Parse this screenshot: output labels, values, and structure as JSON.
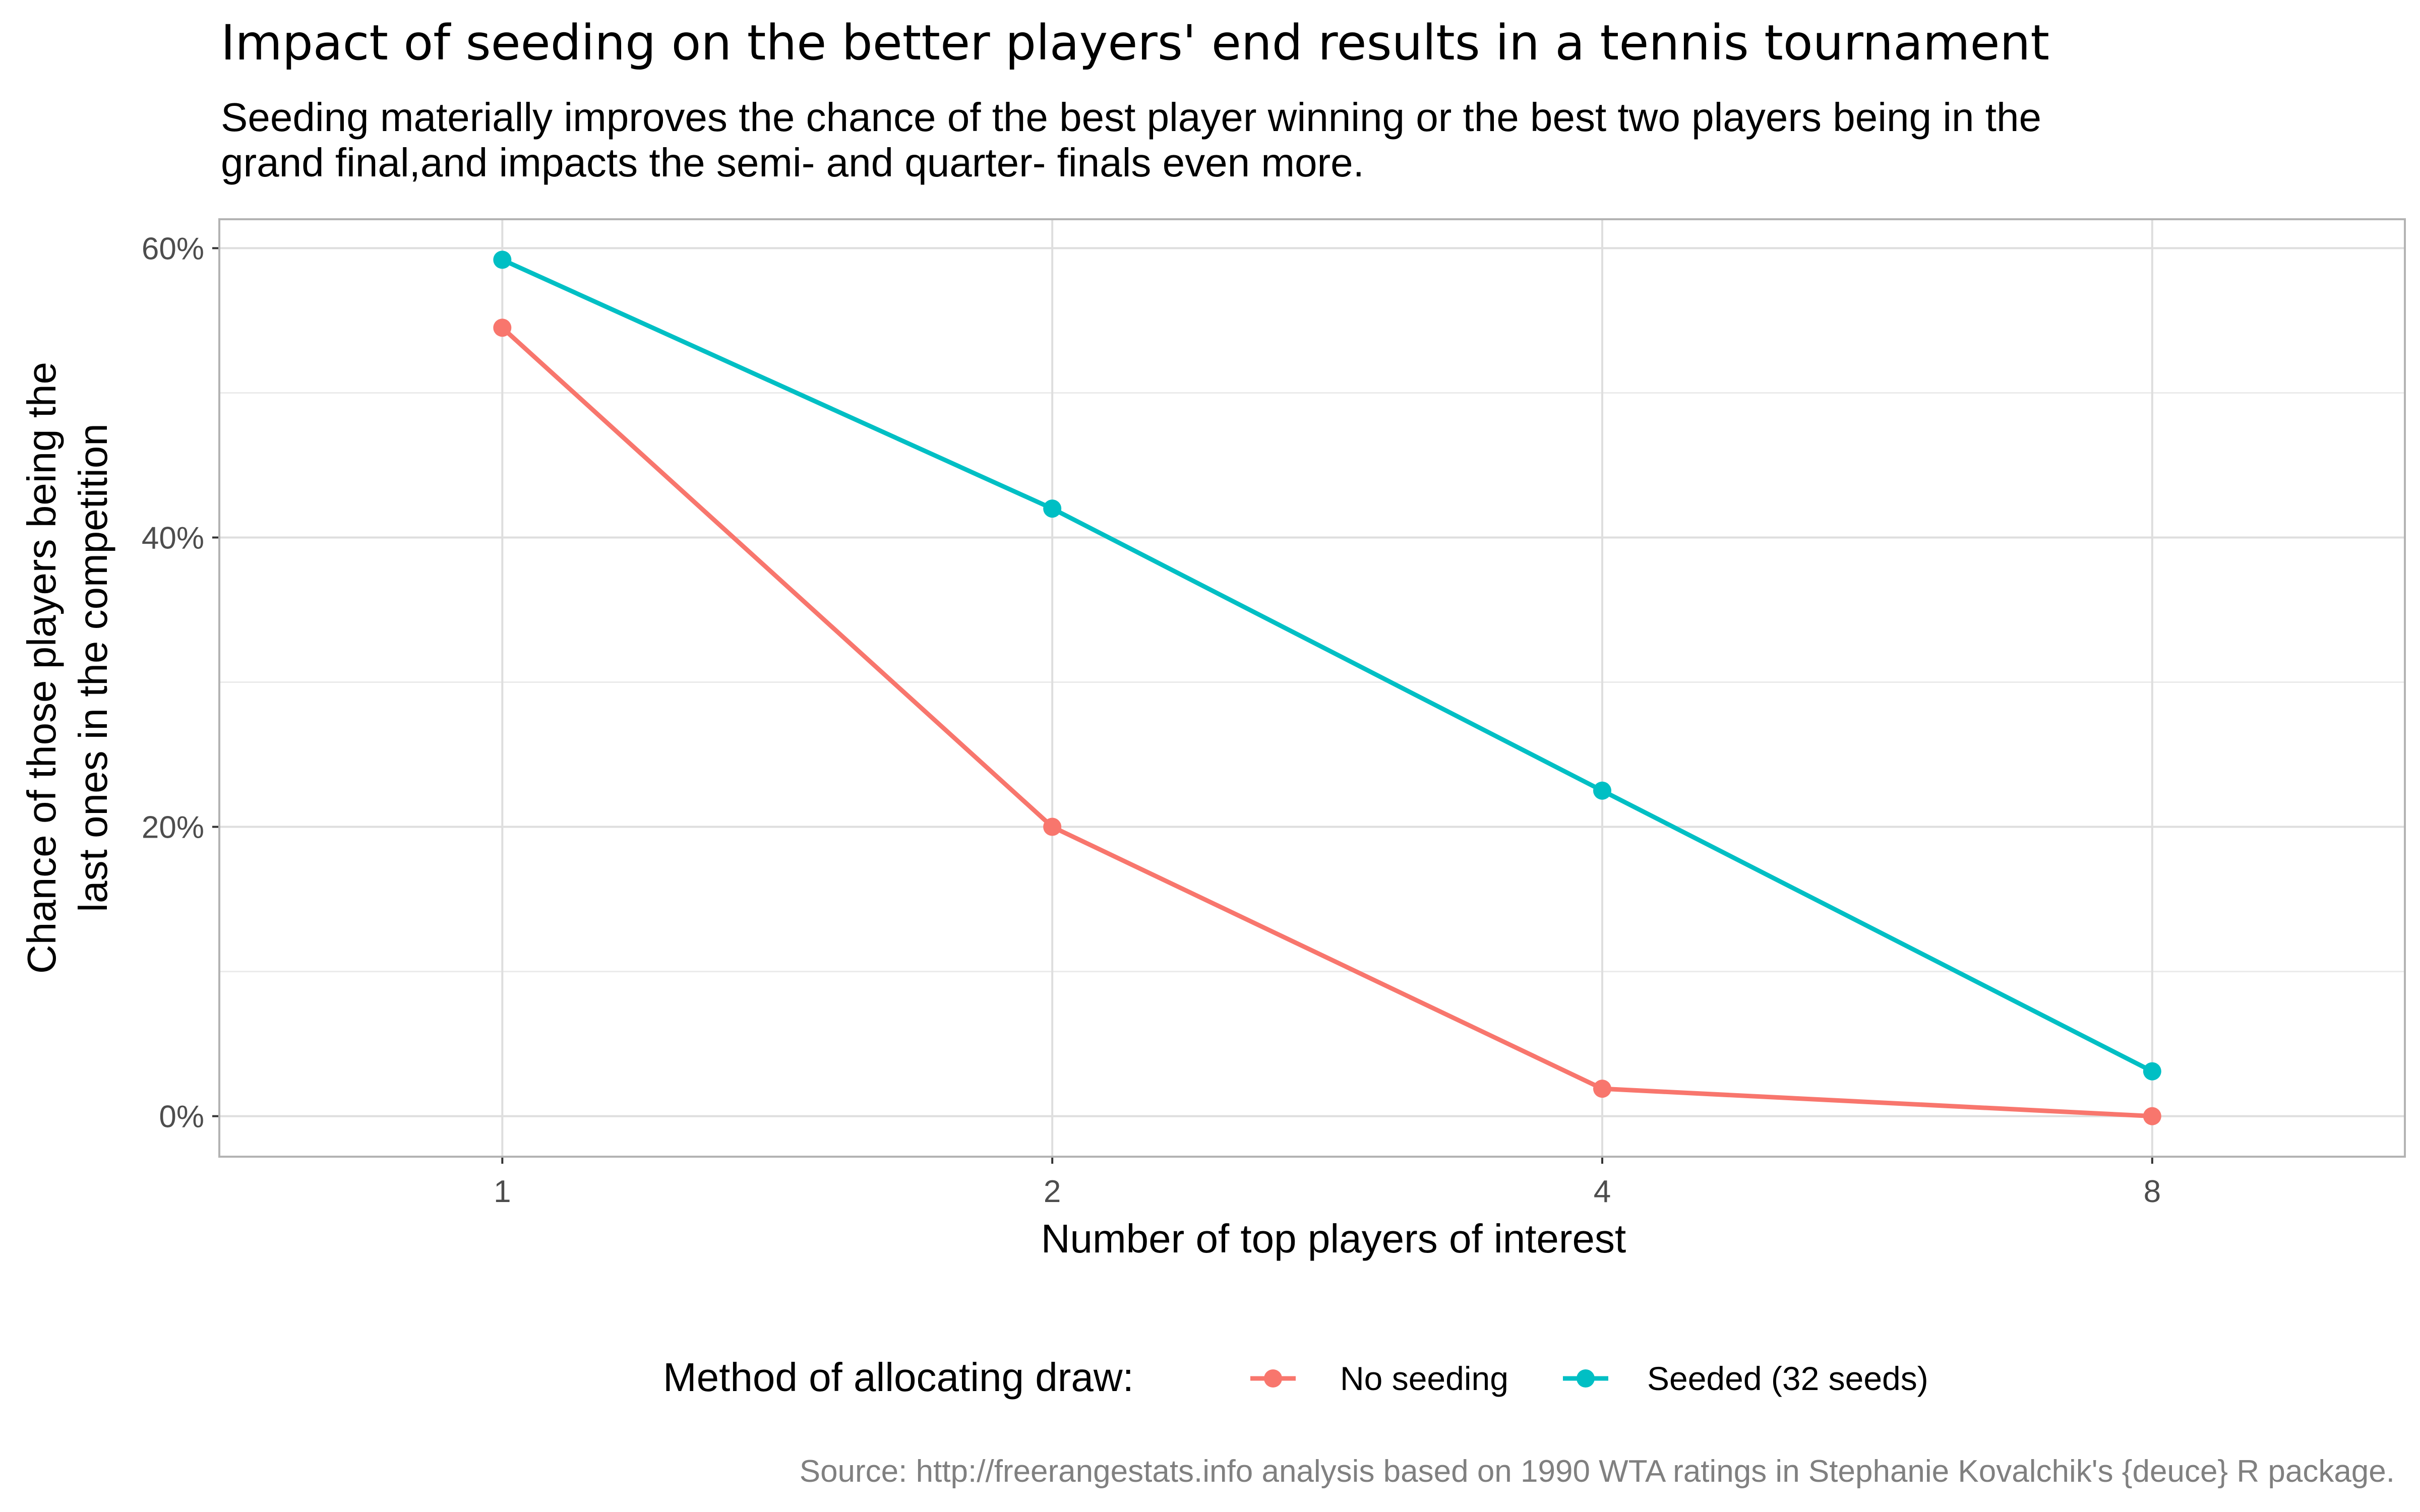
{
  "chart_data": {
    "type": "line",
    "title": "Impact of seeding on the better players' end results in a tennis tournament",
    "subtitle": [
      "Seeding materially improves the chance of the best player winning or the best two players being in the",
      "grand final,and impacts the semi- and quarter- finals even more."
    ],
    "xlabel": "Number of top players of interest",
    "ylabel": [
      "Chance of those players being the",
      "last ones in the competition"
    ],
    "x": [
      1,
      2,
      4,
      8
    ],
    "x_tick_labels": [
      "1",
      "2",
      "4",
      "8"
    ],
    "x_scale": "log2",
    "xlim": [
      0.7,
      11
    ],
    "ylim": [
      -0.028,
      0.62
    ],
    "y_ticks": [
      0,
      0.2,
      0.4,
      0.6
    ],
    "y_tick_labels": [
      "0%",
      "20%",
      "40%",
      "60%"
    ],
    "grid": true,
    "legend": {
      "title": "Method of allocating draw:",
      "position": "bottom"
    },
    "series": [
      {
        "name": "No seeding",
        "color": "#F8766D",
        "values": [
          0.545,
          0.2,
          0.019,
          0.0
        ]
      },
      {
        "name": "Seeded (32 seeds)",
        "color": "#00BFC4",
        "values": [
          0.592,
          0.42,
          0.225,
          0.031
        ]
      }
    ],
    "caption": "Source: http://freerangestats.info analysis based on 1990 WTA ratings in Stephanie Kovalchik's {deuce} R package."
  }
}
